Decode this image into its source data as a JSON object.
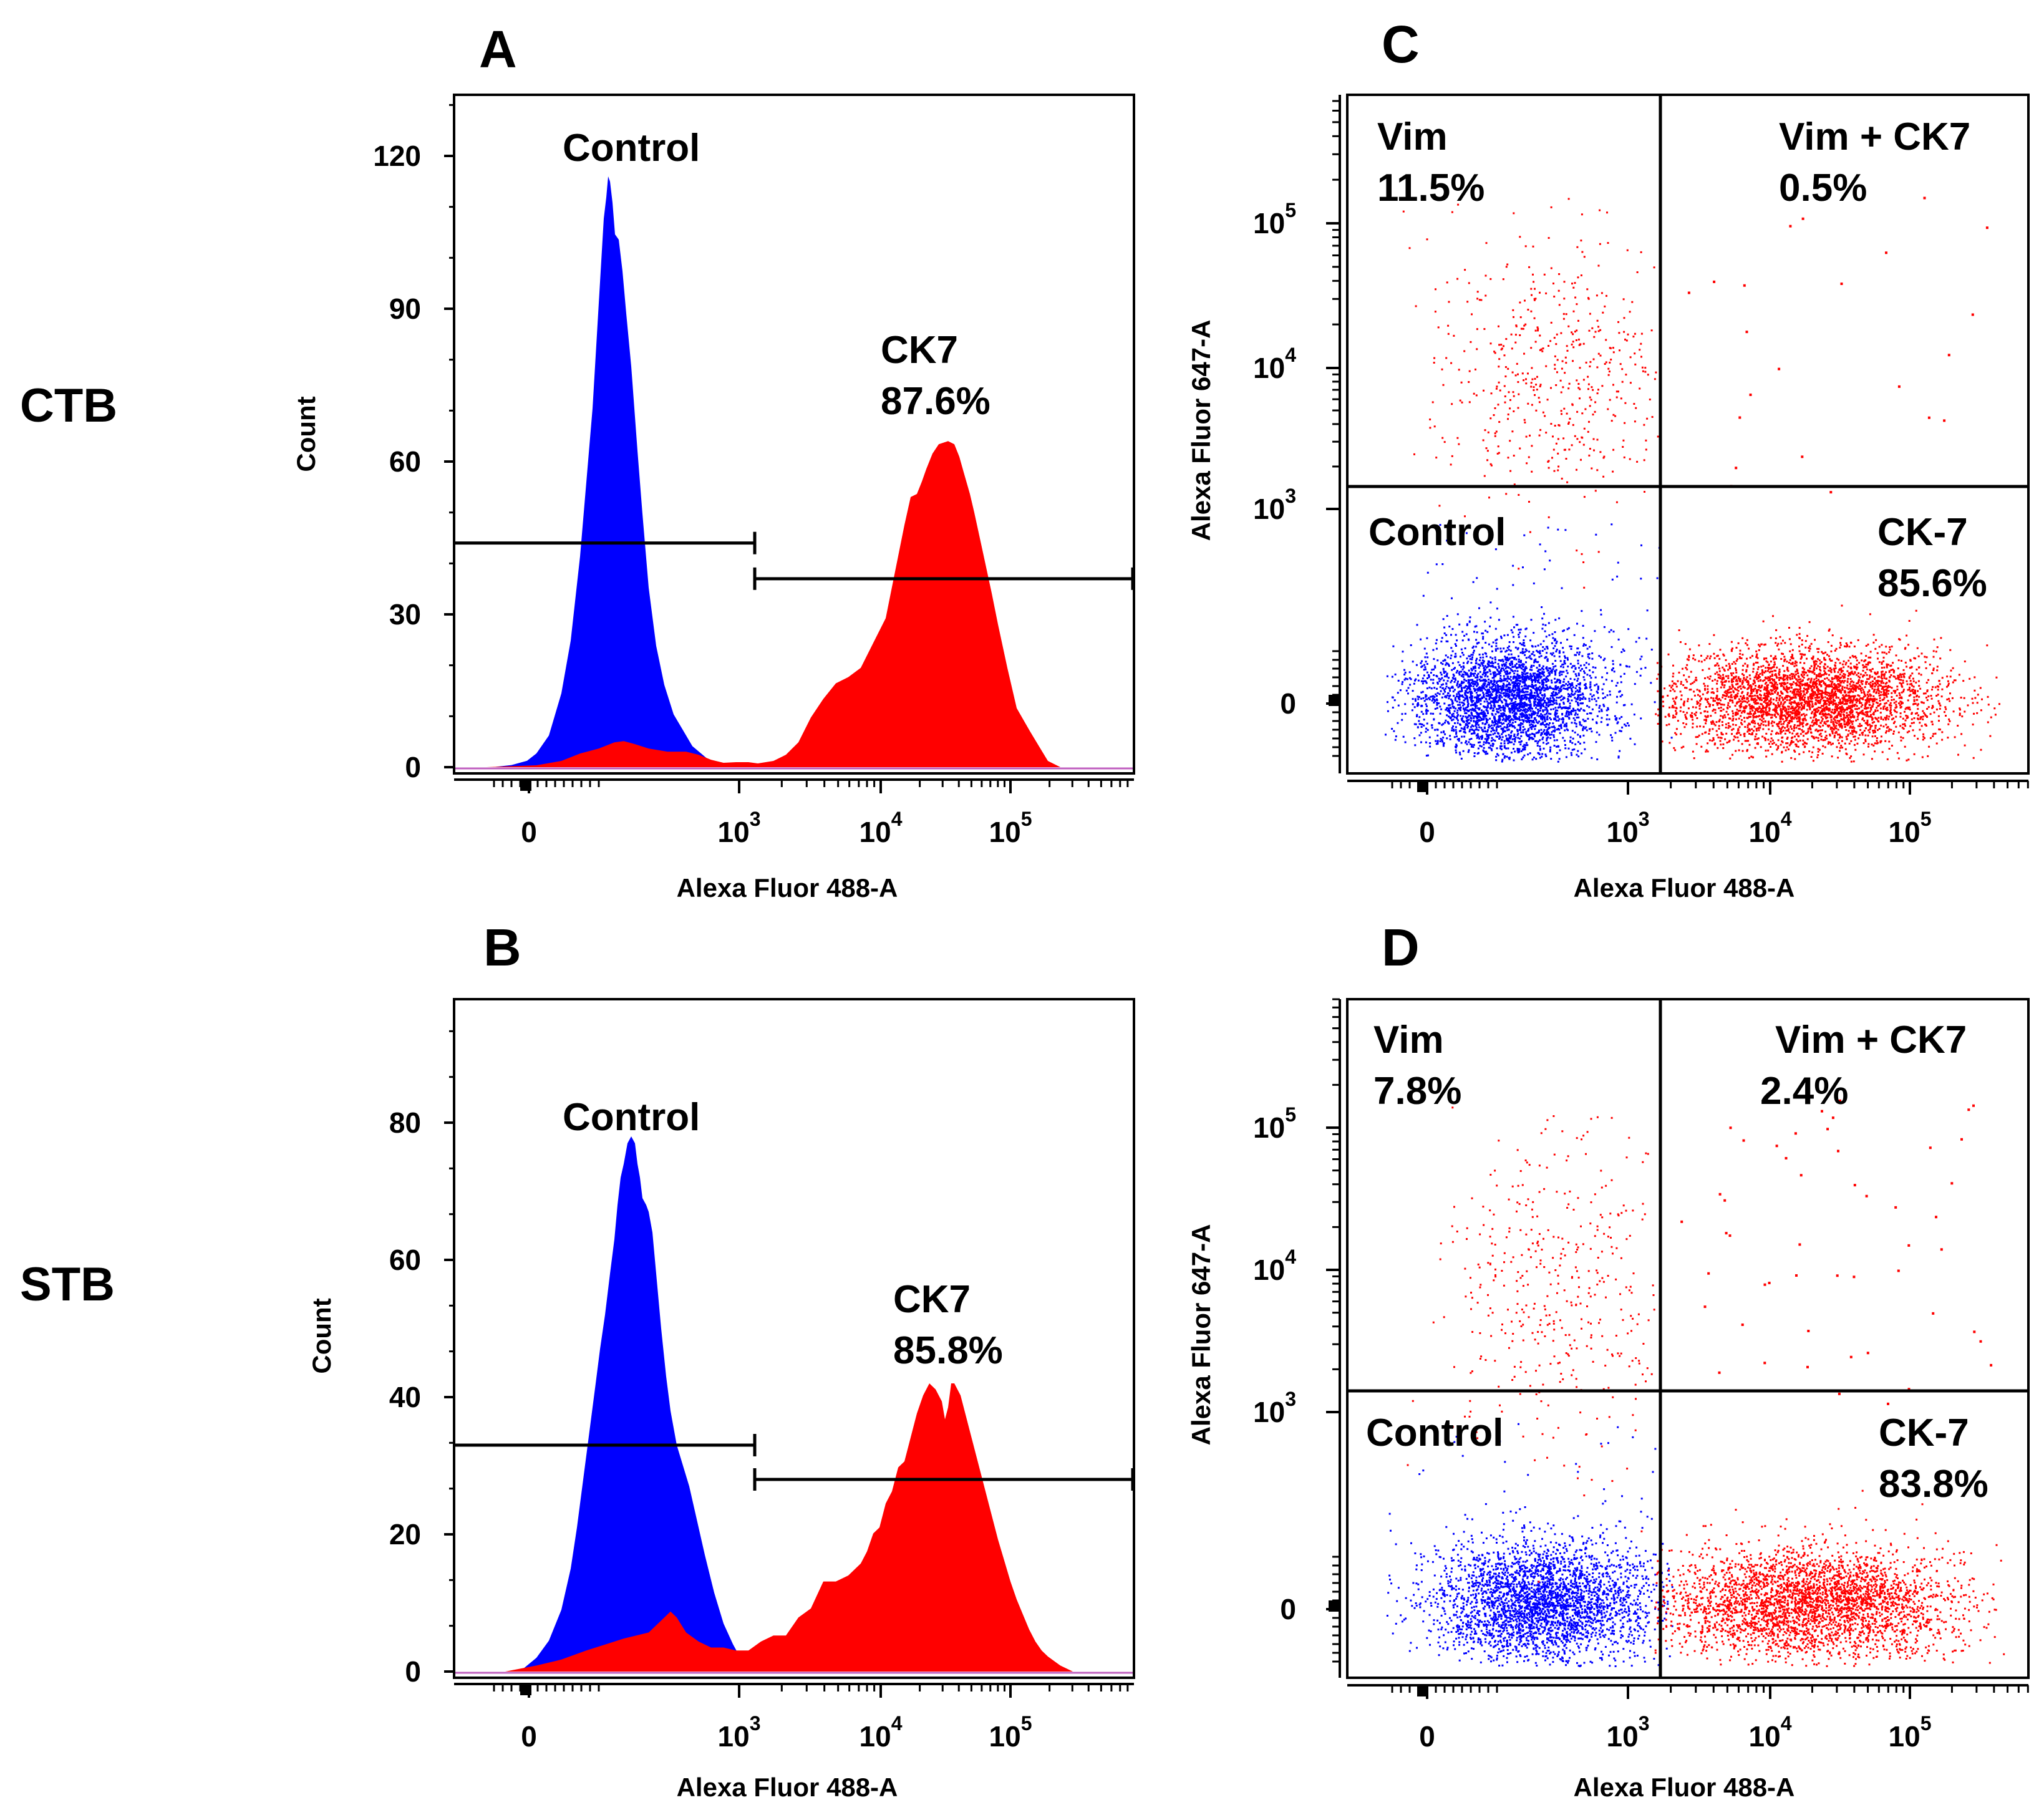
{
  "row_labels": [
    "CTB",
    "STB"
  ],
  "chart_data": [
    {
      "panel": "A",
      "type": "area",
      "xlabel": "Alexa Fluor 488-A",
      "ylabel": "Count",
      "x_scale": "biexponential",
      "x_ticks": [
        {
          "base": "0",
          "exp": ""
        },
        {
          "base": "10",
          "exp": "3"
        },
        {
          "base": "10",
          "exp": "4"
        },
        {
          "base": "10",
          "exp": "5"
        }
      ],
      "y_ticks": [
        "0",
        "30",
        "60",
        "90",
        "120"
      ],
      "ylim": [
        0,
        132
      ],
      "annotations": [
        {
          "id": "control",
          "lines": [
            "Control"
          ]
        },
        {
          "id": "ck7",
          "lines": [
            "CK7",
            "87.6%"
          ]
        }
      ],
      "series": [
        {
          "name": "Control",
          "color": "#0000ff",
          "peak_count": 116,
          "peak_position": "~400"
        },
        {
          "name": "CK7",
          "color": "#ff0000",
          "peak_count": 64,
          "peak_position": "~2.5x10^4",
          "percent": "87.6%"
        }
      ],
      "gates": [
        {
          "name": "negative",
          "count_level": 44
        },
        {
          "name": "positive",
          "count_level": 37
        }
      ]
    },
    {
      "panel": "B",
      "type": "area",
      "xlabel": "Alexa Fluor 488-A",
      "ylabel": "Count",
      "x_scale": "biexponential",
      "x_ticks": [
        {
          "base": "0",
          "exp": ""
        },
        {
          "base": "10",
          "exp": "3"
        },
        {
          "base": "10",
          "exp": "4"
        },
        {
          "base": "10",
          "exp": "5"
        }
      ],
      "y_ticks": [
        "0",
        "20",
        "40",
        "60",
        "80"
      ],
      "ylim": [
        0,
        98
      ],
      "annotations": [
        {
          "id": "control",
          "lines": [
            "Control"
          ]
        },
        {
          "id": "ck7",
          "lines": [
            "CK7",
            "85.8%"
          ]
        }
      ],
      "series": [
        {
          "name": "Control",
          "color": "#0000ff",
          "peak_count": 78,
          "peak_position": "~500"
        },
        {
          "name": "CK7",
          "color": "#ff0000",
          "peak_count": 42,
          "peak_position": "~3x10^4",
          "percent": "85.8%"
        }
      ],
      "gates": [
        {
          "name": "negative",
          "count_level": 33
        },
        {
          "name": "positive",
          "count_level": 28
        }
      ]
    },
    {
      "panel": "C",
      "type": "scatter",
      "xlabel": "Alexa Fluor 488-A",
      "ylabel": "Alexa Fluor 647-A",
      "x_ticks": [
        {
          "base": "0",
          "exp": ""
        },
        {
          "base": "10",
          "exp": "3"
        },
        {
          "base": "10",
          "exp": "4"
        },
        {
          "base": "10",
          "exp": "5"
        }
      ],
      "y_ticks": [
        {
          "base": "0",
          "exp": ""
        },
        {
          "base": "10",
          "exp": "3"
        },
        {
          "base": "10",
          "exp": "4"
        },
        {
          "base": "10",
          "exp": "5"
        }
      ],
      "quadrants": [
        {
          "id": "ul",
          "label": "Vim",
          "percent": "11.5%"
        },
        {
          "id": "ur",
          "label": "Vim + CK7",
          "percent": "0.5%"
        },
        {
          "id": "ll",
          "label": "Control",
          "percent": ""
        },
        {
          "id": "lr",
          "label": "CK-7",
          "percent": "85.6%"
        }
      ]
    },
    {
      "panel": "D",
      "type": "scatter",
      "xlabel": "Alexa Fluor 488-A",
      "ylabel": "Alexa Fluor 647-A",
      "x_ticks": [
        {
          "base": "0",
          "exp": ""
        },
        {
          "base": "10",
          "exp": "3"
        },
        {
          "base": "10",
          "exp": "4"
        },
        {
          "base": "10",
          "exp": "5"
        }
      ],
      "y_ticks": [
        {
          "base": "0",
          "exp": ""
        },
        {
          "base": "10",
          "exp": "3"
        },
        {
          "base": "10",
          "exp": "4"
        },
        {
          "base": "10",
          "exp": "5"
        }
      ],
      "quadrants": [
        {
          "id": "ul",
          "label": "Vim",
          "percent": "7.8%"
        },
        {
          "id": "ur",
          "label": "Vim + CK7",
          "percent": "2.4%"
        },
        {
          "id": "ll",
          "label": "Control",
          "percent": ""
        },
        {
          "id": "lr",
          "label": "CK-7",
          "percent": "83.8%"
        }
      ]
    }
  ],
  "colors": {
    "control": "#0000ff",
    "ck7": "#ff0000",
    "axis": "#000000"
  }
}
